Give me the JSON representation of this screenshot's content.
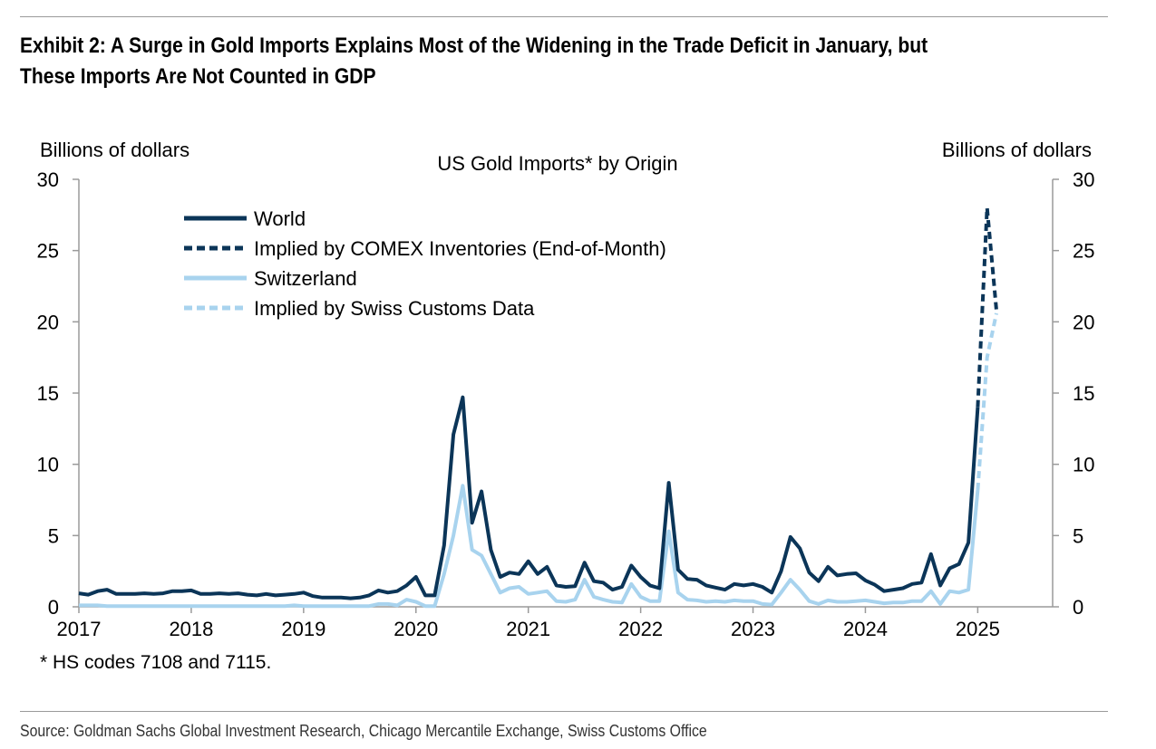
{
  "exhibit_title": "Exhibit 2: A Surge in Gold Imports Explains Most of the Widening in the Trade Deficit in January, but These Imports Are Not Counted in GDP",
  "footnote": "* HS codes 7108 and 7115.",
  "source": "Source: Goldman Sachs Global Investment Research, Chicago Mercantile Exchange, Swiss Customs Office",
  "colors": {
    "dark_navy": "#0b3558",
    "light_blue": "#a8d3ee",
    "axis": "#9a9a9a"
  },
  "chart_data": {
    "type": "line",
    "title": "US Gold Imports* by Origin",
    "y_left_label": "Billions of dollars",
    "y_right_label": "Billions of dollars",
    "ylim": [
      0,
      30
    ],
    "y_ticks": [
      "0",
      "5",
      "10",
      "15",
      "20",
      "25",
      "30"
    ],
    "x_start_year": 2017,
    "x_ticks": [
      "2017",
      "2018",
      "2019",
      "2020",
      "2021",
      "2022",
      "2023",
      "2024",
      "2025"
    ],
    "grid": false,
    "legend_position": "top-left",
    "series": [
      {
        "name": "World",
        "color": "#0b3558",
        "style": "solid",
        "x": [
          0,
          1,
          2,
          3,
          4,
          5,
          6,
          7,
          8,
          9,
          10,
          11,
          12,
          13,
          14,
          15,
          16,
          17,
          18,
          19,
          20,
          21,
          22,
          23,
          24,
          25,
          26,
          27,
          28,
          29,
          30,
          31,
          32,
          33,
          34,
          35,
          36,
          37,
          38,
          39,
          40,
          41,
          42,
          43,
          44,
          45,
          46,
          47,
          48,
          49,
          50,
          51,
          52,
          53,
          54,
          55,
          56,
          57,
          58,
          59,
          60,
          61,
          62,
          63,
          64,
          65,
          66,
          67,
          68,
          69,
          70,
          71,
          72,
          73,
          74,
          75,
          76,
          77,
          78,
          79,
          80,
          81,
          82,
          83,
          84,
          85,
          86,
          87,
          88,
          89,
          90,
          91,
          92,
          93,
          94,
          95,
          96
        ],
        "values": [
          0.95,
          0.85,
          1.1,
          1.2,
          0.9,
          0.9,
          0.9,
          0.95,
          0.9,
          0.95,
          1.1,
          1.1,
          1.15,
          0.9,
          0.9,
          0.95,
          0.9,
          0.95,
          0.85,
          0.8,
          0.9,
          0.8,
          0.85,
          0.9,
          1.0,
          0.75,
          0.65,
          0.65,
          0.65,
          0.6,
          0.65,
          0.8,
          1.15,
          1.0,
          1.1,
          1.5,
          2.1,
          0.8,
          0.8,
          4.3,
          12.1,
          14.7,
          5.9,
          8.1,
          4.0,
          2.1,
          2.4,
          2.3,
          3.2,
          2.3,
          2.8,
          1.5,
          1.4,
          1.45,
          3.1,
          1.8,
          1.7,
          1.2,
          1.4,
          2.9,
          2.1,
          1.5,
          1.3,
          8.7,
          2.6,
          1.95,
          1.9,
          1.5,
          1.35,
          1.2,
          1.6,
          1.5,
          1.6,
          1.4,
          1.0,
          2.5,
          4.9,
          4.1,
          2.4,
          1.8,
          2.8,
          2.2,
          2.3,
          2.35,
          1.85,
          1.55,
          1.1,
          1.2,
          1.3,
          1.6,
          1.7,
          3.7,
          1.5,
          2.7,
          3.0,
          4.5,
          14.0
        ]
      },
      {
        "name": "Implied by COMEX Inventories (End-of-Month)",
        "color": "#0b3558",
        "style": "dashed",
        "x": [
          96,
          97,
          98
        ],
        "values": [
          14.0,
          28.0,
          20.8
        ]
      },
      {
        "name": "Switzerland",
        "color": "#a8d3ee",
        "style": "solid",
        "x": [
          0,
          1,
          2,
          3,
          4,
          5,
          6,
          7,
          8,
          9,
          10,
          11,
          12,
          13,
          14,
          15,
          16,
          17,
          18,
          19,
          20,
          21,
          22,
          23,
          24,
          25,
          26,
          27,
          28,
          29,
          30,
          31,
          32,
          33,
          34,
          35,
          36,
          37,
          38,
          39,
          40,
          41,
          42,
          43,
          44,
          45,
          46,
          47,
          48,
          49,
          50,
          51,
          52,
          53,
          54,
          55,
          56,
          57,
          58,
          59,
          60,
          61,
          62,
          63,
          64,
          65,
          66,
          67,
          68,
          69,
          70,
          71,
          72,
          73,
          74,
          75,
          76,
          77,
          78,
          79,
          80,
          81,
          82,
          83,
          84,
          85,
          86,
          87,
          88,
          89,
          90,
          91,
          92,
          93,
          94,
          95,
          96
        ],
        "values": [
          0.1,
          0.1,
          0.1,
          0.05,
          0.05,
          0.05,
          0.05,
          0.05,
          0.05,
          0.05,
          0.05,
          0.05,
          0.05,
          0.05,
          0.05,
          0.05,
          0.05,
          0.05,
          0.05,
          0.05,
          0.05,
          0.05,
          0.05,
          0.1,
          0.05,
          0.05,
          0.05,
          0.05,
          0.05,
          0.05,
          0.05,
          0.05,
          0.2,
          0.2,
          0.1,
          0.5,
          0.35,
          0.05,
          0.05,
          2.3,
          5.0,
          8.5,
          4.0,
          3.6,
          2.3,
          1.0,
          1.3,
          1.4,
          0.9,
          1.0,
          1.1,
          0.4,
          0.35,
          0.5,
          1.9,
          0.7,
          0.5,
          0.35,
          0.3,
          1.6,
          0.7,
          0.4,
          0.4,
          5.3,
          1.0,
          0.5,
          0.45,
          0.35,
          0.4,
          0.35,
          0.45,
          0.4,
          0.4,
          0.2,
          0.15,
          1.0,
          1.9,
          1.2,
          0.4,
          0.2,
          0.45,
          0.35,
          0.35,
          0.4,
          0.45,
          0.35,
          0.25,
          0.3,
          0.3,
          0.4,
          0.4,
          1.1,
          0.2,
          1.1,
          1.0,
          1.2,
          8.2
        ]
      },
      {
        "name": "Implied by Swiss Customs Data",
        "color": "#a8d3ee",
        "style": "dashed",
        "x": [
          96,
          97,
          98
        ],
        "values": [
          8.2,
          17.5,
          20.6
        ]
      }
    ]
  }
}
